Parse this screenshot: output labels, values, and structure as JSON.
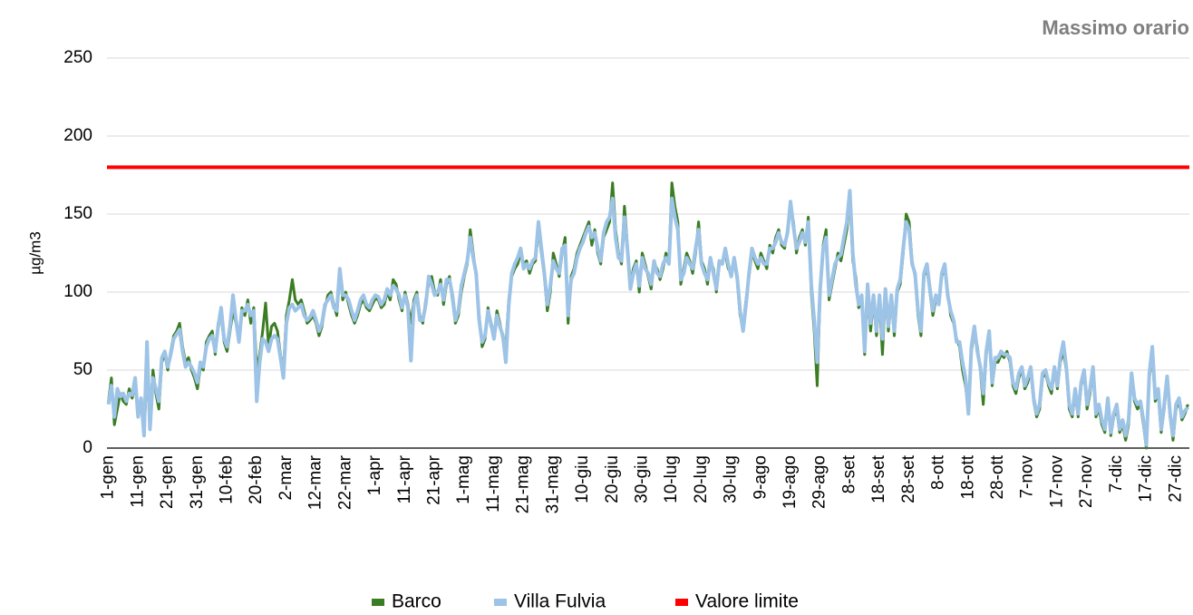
{
  "chart_data": {
    "type": "line",
    "title": "Massimo orario",
    "y_label": "µg/m3",
    "categories": [
      "1-gen",
      null,
      null,
      null,
      null,
      null,
      null,
      null,
      null,
      null,
      "11-gen",
      null,
      null,
      null,
      null,
      null,
      null,
      null,
      null,
      null,
      "21-gen",
      null,
      null,
      null,
      null,
      null,
      null,
      null,
      null,
      null,
      "31-gen",
      null,
      null,
      null,
      null,
      null,
      null,
      null,
      null,
      null,
      "10-feb",
      null,
      null,
      null,
      null,
      null,
      null,
      null,
      null,
      null,
      "20-feb",
      null,
      null,
      null,
      null,
      null,
      null,
      null,
      null,
      null,
      "2-mar",
      null,
      null,
      null,
      null,
      null,
      null,
      null,
      null,
      null,
      "12-mar",
      null,
      null,
      null,
      null,
      null,
      null,
      null,
      null,
      null,
      "22-mar",
      null,
      null,
      null,
      null,
      null,
      null,
      null,
      null,
      null,
      "1-apr",
      null,
      null,
      null,
      null,
      null,
      null,
      null,
      null,
      null,
      "11-apr",
      null,
      null,
      null,
      null,
      null,
      null,
      null,
      null,
      null,
      "21-apr",
      null,
      null,
      null,
      null,
      null,
      null,
      null,
      null,
      null,
      "1-mag",
      null,
      null,
      null,
      null,
      null,
      null,
      null,
      null,
      null,
      "11-mag",
      null,
      null,
      null,
      null,
      null,
      null,
      null,
      null,
      null,
      "21-mag",
      null,
      null,
      null,
      null,
      null,
      null,
      null,
      null,
      null,
      "31-mag",
      null,
      null,
      null,
      null,
      null,
      null,
      null,
      null,
      null,
      "10-giu",
      null,
      null,
      null,
      null,
      null,
      null,
      null,
      null,
      null,
      "20-giu",
      null,
      null,
      null,
      null,
      null,
      null,
      null,
      null,
      null,
      "30-giu",
      null,
      null,
      null,
      null,
      null,
      null,
      null,
      null,
      null,
      "10-lug",
      null,
      null,
      null,
      null,
      null,
      null,
      null,
      null,
      null,
      "20-lug",
      null,
      null,
      null,
      null,
      null,
      null,
      null,
      null,
      null,
      "30-lug",
      null,
      null,
      null,
      null,
      null,
      null,
      null,
      null,
      null,
      "9-ago",
      null,
      null,
      null,
      null,
      null,
      null,
      null,
      null,
      null,
      "19-ago",
      null,
      null,
      null,
      null,
      null,
      null,
      null,
      null,
      null,
      "29-ago",
      null,
      null,
      null,
      null,
      null,
      null,
      null,
      null,
      null,
      "8-set",
      null,
      null,
      null,
      null,
      null,
      null,
      null,
      null,
      null,
      "18-set",
      null,
      null,
      null,
      null,
      null,
      null,
      null,
      null,
      null,
      "28-set",
      null,
      null,
      null,
      null,
      null,
      null,
      null,
      null,
      null,
      "8-ott",
      null,
      null,
      null,
      null,
      null,
      null,
      null,
      null,
      null,
      "18-ott",
      null,
      null,
      null,
      null,
      null,
      null,
      null,
      null,
      null,
      "28-ott",
      null,
      null,
      null,
      null,
      null,
      null,
      null,
      null,
      null,
      "7-nov",
      null,
      null,
      null,
      null,
      null,
      null,
      null,
      null,
      null,
      "17-nov",
      null,
      null,
      null,
      null,
      null,
      null,
      null,
      null,
      null,
      "27-nov",
      null,
      null,
      null,
      null,
      null,
      null,
      null,
      null,
      null,
      "7-dic",
      null,
      null,
      null,
      null,
      null,
      null,
      null,
      null,
      null,
      "17-dic",
      null,
      null,
      null,
      null,
      null,
      null,
      null,
      null,
      null,
      "27-dic",
      null,
      null,
      null,
      null
    ],
    "series": [
      {
        "name": "Barco",
        "color": "#3a7d22",
        "values": [
          30,
          45,
          15,
          25,
          35,
          30,
          28,
          38,
          32,
          40,
          25,
          30,
          10,
          48,
          15,
          50,
          35,
          25,
          55,
          60,
          50,
          62,
          72,
          75,
          80,
          65,
          55,
          58,
          50,
          45,
          38,
          52,
          50,
          68,
          72,
          75,
          60,
          80,
          85,
          68,
          62,
          75,
          88,
          80,
          70,
          90,
          85,
          95,
          80,
          90,
          50,
          60,
          75,
          93,
          65,
          78,
          80,
          75,
          60,
          50,
          85,
          95,
          108,
          95,
          92,
          95,
          88,
          80,
          82,
          85,
          80,
          72,
          78,
          90,
          98,
          100,
          92,
          85,
          112,
          95,
          100,
          92,
          85,
          80,
          85,
          92,
          95,
          90,
          88,
          92,
          96,
          95,
          90,
          92,
          100,
          95,
          108,
          105,
          95,
          88,
          100,
          92,
          80,
          95,
          100,
          85,
          80,
          95,
          105,
          110,
          100,
          98,
          108,
          92,
          105,
          110,
          95,
          80,
          85,
          100,
          110,
          118,
          140,
          125,
          110,
          85,
          65,
          70,
          90,
          78,
          72,
          88,
          80,
          70,
          65,
          95,
          110,
          115,
          118,
          125,
          118,
          120,
          112,
          118,
          120,
          140,
          125,
          110,
          88,
          100,
          125,
          118,
          110,
          125,
          135,
          80,
          110,
          115,
          125,
          130,
          135,
          140,
          145,
          130,
          140,
          125,
          118,
          135,
          140,
          145,
          170,
          140,
          125,
          118,
          155,
          130,
          105,
          115,
          120,
          100,
          125,
          118,
          110,
          102,
          118,
          115,
          108,
          115,
          125,
          120,
          170,
          155,
          145,
          105,
          115,
          125,
          120,
          112,
          125,
          145,
          120,
          115,
          105,
          120,
          115,
          100,
          118,
          120,
          125,
          115,
          112,
          120,
          108,
          85,
          78,
          95,
          110,
          125,
          120,
          115,
          125,
          120,
          115,
          130,
          125,
          135,
          140,
          130,
          128,
          140,
          155,
          145,
          125,
          135,
          140,
          130,
          148,
          100,
          75,
          40,
          100,
          130,
          140,
          95,
          105,
          115,
          125,
          120,
          130,
          140,
          160,
          120,
          110,
          90,
          95,
          60,
          100,
          75,
          95,
          72,
          95,
          60,
          100,
          75,
          95,
          72,
          100,
          105,
          125,
          150,
          145,
          120,
          110,
          85,
          72,
          110,
          115,
          100,
          85,
          95,
          95,
          110,
          115,
          100,
          85,
          80,
          70,
          65,
          50,
          40,
          25,
          62,
          75,
          65,
          50,
          28,
          60,
          72,
          40,
          55,
          55,
          60,
          58,
          62,
          55,
          40,
          35,
          45,
          50,
          38,
          42,
          50,
          30,
          20,
          25,
          45,
          48,
          40,
          35,
          50,
          38,
          55,
          62,
          50,
          25,
          20,
          35,
          20,
          40,
          48,
          25,
          35,
          50,
          20,
          25,
          15,
          10,
          30,
          8,
          20,
          25,
          10,
          15,
          5,
          15,
          45,
          30,
          25,
          28,
          15,
          0,
          45,
          60,
          30,
          35,
          10,
          25,
          45,
          20,
          5,
          25,
          30,
          18,
          22,
          28
        ]
      },
      {
        "name": "Villa Fulvia",
        "color": "#9dc3e6",
        "values": [
          28,
          40,
          20,
          38,
          33,
          35,
          30,
          35,
          34,
          45,
          20,
          32,
          8,
          68,
          12,
          45,
          38,
          30,
          58,
          62,
          52,
          60,
          70,
          73,
          76,
          62,
          52,
          55,
          52,
          48,
          42,
          55,
          52,
          65,
          70,
          72,
          62,
          78,
          90,
          70,
          65,
          78,
          98,
          82,
          68,
          88,
          88,
          92,
          85,
          88,
          30,
          55,
          70,
          68,
          62,
          70,
          72,
          70,
          58,
          45,
          80,
          90,
          92,
          88,
          90,
          92,
          85,
          82,
          84,
          88,
          82,
          75,
          80,
          92,
          95,
          98,
          90,
          88,
          115,
          98,
          98,
          95,
          88,
          82,
          88,
          95,
          98,
          92,
          90,
          95,
          98,
          97,
          92,
          95,
          102,
          98,
          104,
          102,
          98,
          90,
          98,
          90,
          56,
          92,
          98,
          82,
          82,
          92,
          110,
          105,
          98,
          100,
          105,
          95,
          108,
          108,
          98,
          82,
          88,
          104,
          112,
          120,
          135,
          122,
          112,
          82,
          68,
          72,
          88,
          80,
          70,
          85,
          78,
          72,
          55,
          92,
          112,
          118,
          122,
          128,
          115,
          118,
          115,
          120,
          122,
          145,
          128,
          112,
          92,
          104,
          120,
          115,
          112,
          128,
          130,
          85,
          108,
          112,
          122,
          128,
          132,
          138,
          142,
          135,
          138,
          128,
          120,
          138,
          145,
          148,
          160,
          135,
          122,
          120,
          148,
          128,
          102,
          112,
          118,
          104,
          122,
          115,
          112,
          105,
          120,
          112,
          110,
          118,
          122,
          118,
          160,
          148,
          140,
          108,
          112,
          122,
          118,
          115,
          128,
          140,
          118,
          112,
          108,
          122,
          112,
          102,
          120,
          118,
          128,
          118,
          110,
          122,
          110,
          88,
          75,
          92,
          112,
          128,
          122,
          118,
          122,
          118,
          118,
          128,
          128,
          132,
          138,
          132,
          130,
          138,
          158,
          142,
          128,
          132,
          138,
          132,
          145,
          105,
          82,
          55,
          102,
          128,
          135,
          98,
          108,
          118,
          122,
          124,
          135,
          145,
          165,
          125,
          105,
          92,
          98,
          62,
          105,
          80,
          98,
          75,
          98,
          70,
          102,
          78,
          98,
          75,
          102,
          108,
          128,
          145,
          140,
          118,
          112,
          88,
          75,
          112,
          118,
          102,
          88,
          98,
          92,
          112,
          118,
          98,
          88,
          82,
          68,
          68,
          55,
          45,
          22,
          65,
          78,
          62,
          52,
          35,
          62,
          75,
          42,
          58,
          58,
          62,
          60,
          60,
          58,
          42,
          38,
          48,
          52,
          40,
          45,
          52,
          32,
          22,
          28,
          48,
          50,
          42,
          38,
          52,
          40,
          58,
          68,
          52,
          28,
          22,
          38,
          22,
          42,
          50,
          28,
          38,
          52,
          22,
          28,
          18,
          12,
          32,
          10,
          22,
          28,
          12,
          18,
          8,
          18,
          48,
          32,
          28,
          30,
          18,
          2,
          48,
          65,
          32,
          38,
          12,
          28,
          46,
          22,
          8,
          28,
          32,
          20,
          24,
          26
        ]
      }
    ],
    "limit": {
      "name": "Valore limite",
      "color": "#ff0000",
      "value": 180
    },
    "ylim": [
      0,
      250
    ],
    "yticks": [
      0,
      50,
      100,
      150,
      200,
      250
    ],
    "grid": true
  }
}
